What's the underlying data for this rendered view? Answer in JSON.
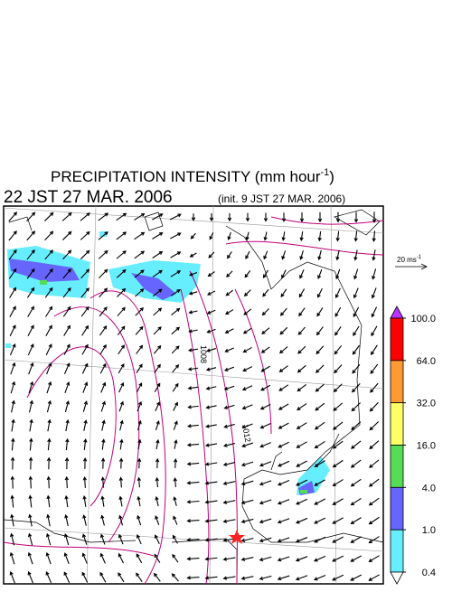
{
  "title": {
    "main": "PRECIPITATION INTENSITY (mm hour",
    "exponent": "-1",
    "end": ")"
  },
  "valid_time": "22 JST 27 MAR. 2006",
  "init_time": "(init. 9 JST 27 MAR. 2006)",
  "wind_scale": {
    "main": "20 ms",
    "exponent": "-1"
  },
  "contour_labels": [
    "1008",
    "1012"
  ],
  "colorbar": {
    "ticks": [
      {
        "value": 100,
        "label": "100.0"
      },
      {
        "value": 64,
        "label": "64.0"
      },
      {
        "value": 32,
        "label": "32.0"
      },
      {
        "value": 16,
        "label": "16.0"
      },
      {
        "value": 4,
        "label": "4.0"
      },
      {
        "value": 1,
        "label": "1.0"
      },
      {
        "value": 0.4,
        "label": "0.4"
      }
    ],
    "colors": [
      "#ff0000",
      "#ff9933",
      "#ffff66",
      "#55dd55",
      "#6666ff",
      "#66eeff"
    ],
    "over_color": "#bb33ff",
    "under_color": "#ffffff"
  }
}
